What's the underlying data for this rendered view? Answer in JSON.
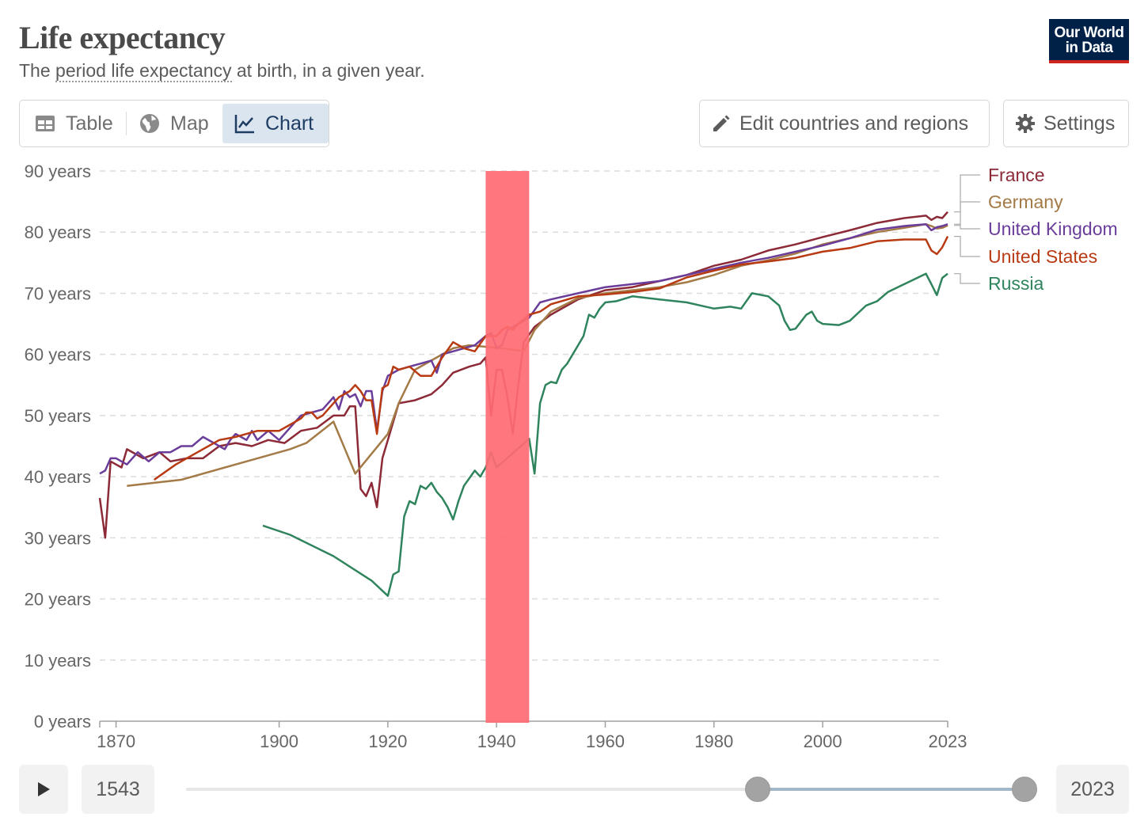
{
  "header": {
    "title": "Life expectancy",
    "subtitle_pre": "The ",
    "subtitle_term": "period life expectancy",
    "subtitle_post": " at birth, in a given year.",
    "logo_line1": "Our World",
    "logo_line2": "in Data"
  },
  "tabs": [
    {
      "label": "Table",
      "icon": "table-icon"
    },
    {
      "label": "Map",
      "icon": "globe-icon"
    },
    {
      "label": "Chart",
      "icon": "line-chart-icon",
      "active": true
    }
  ],
  "toolbar": {
    "edit_label": "Edit countries and regions",
    "settings_label": "Settings"
  },
  "timeline": {
    "start_year": "1543",
    "end_year": "2023",
    "start_fraction": 0.68,
    "end_fraction": 1.0
  },
  "colors": {
    "France": "#8c2a37",
    "Germany": "#a47a46",
    "United Kingdom": "#6b3d9a",
    "United States": "#b83a12",
    "Russia": "#2f845d",
    "highlight": "#ff6b73"
  },
  "chart_data": {
    "type": "line",
    "title": "Life expectancy",
    "xlabel": "",
    "ylabel": "",
    "xlim": [
      1867,
      2023
    ],
    "ylim": [
      0,
      90
    ],
    "y_ticks": [
      0,
      10,
      20,
      30,
      40,
      50,
      60,
      70,
      80,
      90
    ],
    "y_tick_labels": [
      "0 years",
      "10 years",
      "20 years",
      "30 years",
      "40 years",
      "50 years",
      "60 years",
      "70 years",
      "80 years",
      "90 years"
    ],
    "x_ticks": [
      1870,
      1900,
      1920,
      1940,
      1960,
      1980,
      2000,
      2023
    ],
    "x_tick_labels": [
      "1870",
      "1900",
      "1920",
      "1940",
      "1960",
      "1980",
      "2000",
      "2023"
    ],
    "grid": "horizontal-dashed",
    "legend": "right",
    "highlight_band": {
      "x_start": 1938,
      "x_end": 1946
    },
    "series": [
      {
        "name": "France",
        "end_value": 83.3,
        "points": [
          [
            1867,
            36.5
          ],
          [
            1868,
            30
          ],
          [
            1869,
            42.5
          ],
          [
            1870,
            42
          ],
          [
            1871,
            41.5
          ],
          [
            1872,
            44.5
          ],
          [
            1875,
            43
          ],
          [
            1878,
            44
          ],
          [
            1880,
            42.5
          ],
          [
            1883,
            43
          ],
          [
            1886,
            43
          ],
          [
            1889,
            45
          ],
          [
            1892,
            45.5
          ],
          [
            1895,
            45
          ],
          [
            1898,
            46
          ],
          [
            1901,
            45.5
          ],
          [
            1904,
            47.5
          ],
          [
            1907,
            48
          ],
          [
            1910,
            50
          ],
          [
            1912,
            50
          ],
          [
            1913,
            51.5
          ],
          [
            1914,
            51.5
          ],
          [
            1915,
            38
          ],
          [
            1916,
            36.8
          ],
          [
            1917,
            39
          ],
          [
            1918,
            35
          ],
          [
            1919,
            43
          ],
          [
            1920,
            46
          ],
          [
            1922,
            52
          ],
          [
            1925,
            52.5
          ],
          [
            1928,
            53.5
          ],
          [
            1930,
            55
          ],
          [
            1932,
            57
          ],
          [
            1935,
            58
          ],
          [
            1937,
            58.5
          ],
          [
            1938,
            59.5
          ],
          [
            1939,
            50
          ],
          [
            1940,
            57.5
          ],
          [
            1941,
            57.5
          ],
          [
            1942,
            53
          ],
          [
            1943,
            47
          ],
          [
            1944,
            55
          ],
          [
            1945,
            62
          ],
          [
            1947,
            64.5
          ],
          [
            1950,
            66.5
          ],
          [
            1955,
            69
          ],
          [
            1960,
            70.5
          ],
          [
            1965,
            71
          ],
          [
            1970,
            72
          ],
          [
            1975,
            73
          ],
          [
            1980,
            74.5
          ],
          [
            1985,
            75.5
          ],
          [
            1990,
            77
          ],
          [
            1995,
            78
          ],
          [
            2000,
            79.2
          ],
          [
            2005,
            80.3
          ],
          [
            2010,
            81.5
          ],
          [
            2015,
            82.3
          ],
          [
            2019,
            82.7
          ],
          [
            2020,
            82
          ],
          [
            2021,
            82.5
          ],
          [
            2022,
            82.3
          ],
          [
            2023,
            83.3
          ]
        ]
      },
      {
        "name": "Germany",
        "end_value": 81.1,
        "points": [
          [
            1872,
            38.5
          ],
          [
            1882,
            39.5
          ],
          [
            1892,
            42
          ],
          [
            1902,
            44.5
          ],
          [
            1905,
            45.5
          ],
          [
            1910,
            49
          ],
          [
            1914,
            40.5
          ],
          [
            1920,
            47
          ],
          [
            1922,
            52
          ],
          [
            1925,
            57.5
          ],
          [
            1932,
            61
          ],
          [
            1935,
            61.5
          ],
          [
            1941,
            61
          ],
          [
            1945,
            60.5
          ],
          [
            1947,
            64
          ],
          [
            1950,
            67
          ],
          [
            1955,
            69.2
          ],
          [
            1960,
            70
          ],
          [
            1965,
            70.5
          ],
          [
            1970,
            71
          ],
          [
            1975,
            71.8
          ],
          [
            1980,
            73
          ],
          [
            1985,
            74.5
          ],
          [
            1990,
            75.4
          ],
          [
            1995,
            76.5
          ],
          [
            2000,
            78
          ],
          [
            2005,
            79
          ],
          [
            2010,
            80
          ],
          [
            2015,
            80.7
          ],
          [
            2019,
            81.3
          ],
          [
            2020,
            81
          ],
          [
            2021,
            80.6
          ],
          [
            2022,
            80.7
          ],
          [
            2023,
            81.1
          ]
        ]
      },
      {
        "name": "United Kingdom",
        "end_value": 81.3,
        "points": [
          [
            1867,
            40.5
          ],
          [
            1868,
            41
          ],
          [
            1869,
            43
          ],
          [
            1870,
            43
          ],
          [
            1872,
            42
          ],
          [
            1874,
            44
          ],
          [
            1876,
            42.5
          ],
          [
            1878,
            44
          ],
          [
            1880,
            44
          ],
          [
            1882,
            45
          ],
          [
            1884,
            45
          ],
          [
            1886,
            46.5
          ],
          [
            1888,
            45.5
          ],
          [
            1890,
            44.5
          ],
          [
            1891,
            46
          ],
          [
            1892,
            47
          ],
          [
            1894,
            46
          ],
          [
            1895,
            47.5
          ],
          [
            1896,
            46
          ],
          [
            1898,
            47.5
          ],
          [
            1900,
            46
          ],
          [
            1902,
            48
          ],
          [
            1904,
            50
          ],
          [
            1906,
            50.5
          ],
          [
            1908,
            51
          ],
          [
            1910,
            53
          ],
          [
            1911,
            51
          ],
          [
            1912,
            54
          ],
          [
            1913,
            53
          ],
          [
            1914,
            53.5
          ],
          [
            1915,
            51.5
          ],
          [
            1916,
            54
          ],
          [
            1917,
            54
          ],
          [
            1918,
            47.5
          ],
          [
            1919,
            54
          ],
          [
            1920,
            56.5
          ],
          [
            1922,
            57.5
          ],
          [
            1924,
            58
          ],
          [
            1926,
            58.5
          ],
          [
            1928,
            59
          ],
          [
            1929,
            57
          ],
          [
            1930,
            60
          ],
          [
            1932,
            60.5
          ],
          [
            1934,
            61
          ],
          [
            1936,
            61.5
          ],
          [
            1938,
            63
          ],
          [
            1939,
            63.5
          ],
          [
            1940,
            61
          ],
          [
            1941,
            61.5
          ],
          [
            1942,
            64
          ],
          [
            1944,
            65
          ],
          [
            1946,
            66
          ],
          [
            1948,
            68.5
          ],
          [
            1950,
            69
          ],
          [
            1955,
            70
          ],
          [
            1960,
            71
          ],
          [
            1965,
            71.5
          ],
          [
            1970,
            72
          ],
          [
            1975,
            73
          ],
          [
            1980,
            74
          ],
          [
            1985,
            75
          ],
          [
            1990,
            75.8
          ],
          [
            1995,
            76.8
          ],
          [
            2000,
            77.8
          ],
          [
            2005,
            79
          ],
          [
            2010,
            80.4
          ],
          [
            2015,
            81
          ],
          [
            2019,
            81.3
          ],
          [
            2020,
            80.3
          ],
          [
            2021,
            80.8
          ],
          [
            2022,
            81
          ],
          [
            2023,
            81.3
          ]
        ]
      },
      {
        "name": "United States",
        "end_value": 79.3,
        "points": [
          [
            1877,
            39.5
          ],
          [
            1881,
            42
          ],
          [
            1885,
            44
          ],
          [
            1889,
            46
          ],
          [
            1892,
            46.5
          ],
          [
            1896,
            47.5
          ],
          [
            1900,
            47.5
          ],
          [
            1902,
            48.5
          ],
          [
            1904,
            49.5
          ],
          [
            1905,
            50.5
          ],
          [
            1906,
            50.5
          ],
          [
            1907,
            49.5
          ],
          [
            1908,
            50
          ],
          [
            1909,
            51
          ],
          [
            1910,
            52
          ],
          [
            1911,
            53
          ],
          [
            1912,
            53.5
          ],
          [
            1913,
            54
          ],
          [
            1914,
            55
          ],
          [
            1915,
            54
          ],
          [
            1916,
            52.5
          ],
          [
            1917,
            52.5
          ],
          [
            1918,
            47
          ],
          [
            1919,
            54.5
          ],
          [
            1920,
            55
          ],
          [
            1921,
            58
          ],
          [
            1922,
            57.5
          ],
          [
            1924,
            58
          ],
          [
            1926,
            56.5
          ],
          [
            1928,
            56.5
          ],
          [
            1930,
            59.5
          ],
          [
            1932,
            62
          ],
          [
            1934,
            61
          ],
          [
            1936,
            60.5
          ],
          [
            1938,
            63
          ],
          [
            1940,
            63
          ],
          [
            1941,
            64
          ],
          [
            1942,
            64.5
          ],
          [
            1943,
            64
          ],
          [
            1944,
            65
          ],
          [
            1946,
            66.5
          ],
          [
            1948,
            67
          ],
          [
            1950,
            68.2
          ],
          [
            1955,
            69.5
          ],
          [
            1960,
            69.8
          ],
          [
            1965,
            70.2
          ],
          [
            1970,
            70.8
          ],
          [
            1975,
            72.6
          ],
          [
            1980,
            73.7
          ],
          [
            1985,
            74.7
          ],
          [
            1990,
            75.2
          ],
          [
            1995,
            75.8
          ],
          [
            2000,
            76.8
          ],
          [
            2005,
            77.4
          ],
          [
            2010,
            78.5
          ],
          [
            2015,
            78.8
          ],
          [
            2019,
            78.8
          ],
          [
            2020,
            77
          ],
          [
            2021,
            76.4
          ],
          [
            2022,
            77.5
          ],
          [
            2023,
            79.3
          ]
        ]
      },
      {
        "name": "Russia",
        "end_value": 73.2,
        "points": [
          [
            1897,
            32
          ],
          [
            1902,
            30.5
          ],
          [
            1910,
            27
          ],
          [
            1917,
            23
          ],
          [
            1920,
            20.5
          ],
          [
            1921,
            24
          ],
          [
            1922,
            24.5
          ],
          [
            1923,
            33.5
          ],
          [
            1924,
            36
          ],
          [
            1925,
            35.5
          ],
          [
            1926,
            38.5
          ],
          [
            1927,
            38
          ],
          [
            1928,
            39
          ],
          [
            1929,
            37.5
          ],
          [
            1930,
            36.5
          ],
          [
            1931,
            35
          ],
          [
            1932,
            33
          ],
          [
            1933,
            36
          ],
          [
            1934,
            38.5
          ],
          [
            1936,
            41
          ],
          [
            1937,
            40
          ],
          [
            1938,
            41.5
          ],
          [
            1939,
            44
          ],
          [
            1940,
            41.5
          ],
          [
            1946,
            46.2
          ],
          [
            1947,
            40.5
          ],
          [
            1948,
            52
          ],
          [
            1949,
            55
          ],
          [
            1950,
            55.5
          ],
          [
            1951,
            55.3
          ],
          [
            1952,
            57.5
          ],
          [
            1953,
            58.5
          ],
          [
            1955,
            61.5
          ],
          [
            1956,
            63
          ],
          [
            1957,
            66.5
          ],
          [
            1958,
            66
          ],
          [
            1959,
            67.5
          ],
          [
            1960,
            68.5
          ],
          [
            1962,
            68.7
          ],
          [
            1965,
            69.5
          ],
          [
            1970,
            69
          ],
          [
            1975,
            68.5
          ],
          [
            1980,
            67.5
          ],
          [
            1983,
            67.8
          ],
          [
            1985,
            67.5
          ],
          [
            1987,
            70
          ],
          [
            1990,
            69.5
          ],
          [
            1992,
            68
          ],
          [
            1993,
            65.5
          ],
          [
            1994,
            64
          ],
          [
            1995,
            64.2
          ],
          [
            1997,
            66.5
          ],
          [
            1998,
            67
          ],
          [
            1999,
            65.5
          ],
          [
            2000,
            65
          ],
          [
            2003,
            64.8
          ],
          [
            2005,
            65.5
          ],
          [
            2008,
            68
          ],
          [
            2010,
            68.7
          ],
          [
            2012,
            70.2
          ],
          [
            2015,
            71.5
          ],
          [
            2019,
            73.2
          ],
          [
            2020,
            71.5
          ],
          [
            2021,
            69.7
          ],
          [
            2022,
            72.5
          ],
          [
            2023,
            73.2
          ]
        ]
      }
    ]
  }
}
